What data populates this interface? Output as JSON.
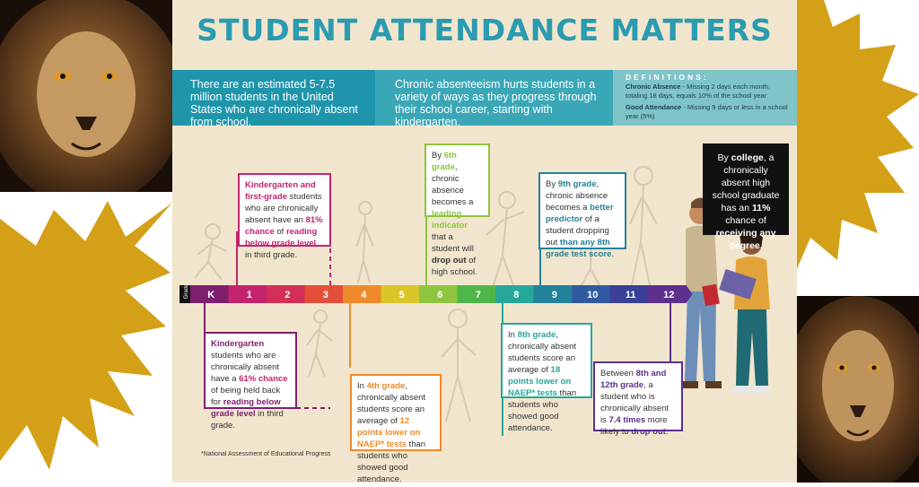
{
  "title": "STUDENT ATTENDANCE MATTERS",
  "intro": {
    "left": "There are an estimated 5-7.5 million students in the United States who are chronically absent from school.",
    "middle": "Chronic absenteeism hurts students in a variety of ways as they progress through their school career, starting with kindergarten."
  },
  "definitions": {
    "heading": "DEFINITIONS:",
    "chronic_term": "Chronic Absence",
    "chronic_text": " - Missing 2 days each month, totaling 18 days, equals 10% of the school year",
    "good_term": "Good Attendance",
    "good_text": " - Missing 9 days or less in a school year (5%)"
  },
  "timeline": {
    "axis_label": "Grade",
    "grades": [
      "K",
      "1",
      "2",
      "3",
      "4",
      "5",
      "6",
      "7",
      "8",
      "9",
      "10",
      "11",
      "12"
    ],
    "colors": [
      "#7e1f6e",
      "#c4246d",
      "#d42f56",
      "#e2503a",
      "#ef8a2b",
      "#d9c72a",
      "#8fc440",
      "#4fb64a",
      "#26a79a",
      "#24819a",
      "#2f5aa0",
      "#3a3f97",
      "#5d2f8e"
    ]
  },
  "facts": {
    "k1_top": {
      "a": "Kindergarten and first-grade",
      "b": " students who are chronically absent have an ",
      "c": "81% chance",
      "d": " of ",
      "e": "reading below grade level",
      "f": " in third grade."
    },
    "k_bottom": {
      "a": "Kindergarten",
      "b": " students who are chronically absent have a ",
      "c": "61% chance",
      "d": " of being held back for ",
      "e": "reading below grade level",
      "f": " in third grade."
    },
    "g4": {
      "a": "In ",
      "b": "4th grade",
      "c": ", chronically absent students score an average of ",
      "d": "12 points lower on NAEP* tests",
      "e": " than students who showed good attendance."
    },
    "g6": {
      "a": "By ",
      "b": "6th grade",
      "c": ", chronic absence becomes a ",
      "d": "leading indicator",
      "e": " that a student will ",
      "f": "drop out",
      "g": " of high school."
    },
    "g8": {
      "a": "In ",
      "b": "8th grade",
      "c": ", chronically absent students score an average of ",
      "d": "18 points lower on NAEP* tests",
      "e": " than students who showed good attendance."
    },
    "g9": {
      "a": "By ",
      "b": "9th grade",
      "c": ", chronic absence becomes a ",
      "d": "better predictor",
      "e": " of a student dropping out ",
      "f": "than any 8th grade test score",
      "g": "."
    },
    "g8_12": {
      "a": "Between ",
      "b": "8th and 12th grade",
      "c": ", a student who is chronically absent is ",
      "d": "7.4 times",
      "e": " more likely to ",
      "f": "drop out",
      "g": "."
    },
    "college": {
      "a": "By ",
      "b": "college",
      "c": ", a chronically absent high school graduate has an ",
      "d": "11%",
      "e": " chance of ",
      "f": "receiving any degree",
      "g": "."
    }
  },
  "footnote": "*National Assessment of Educational Progress",
  "colors": {
    "title": "#2a9bb0",
    "band_dark": "#1f95ab",
    "band_mid": "#3aa7b7",
    "band_light": "#7fc4c8",
    "poster_bg": "#f1e6cd",
    "gold": "#d4a017"
  }
}
